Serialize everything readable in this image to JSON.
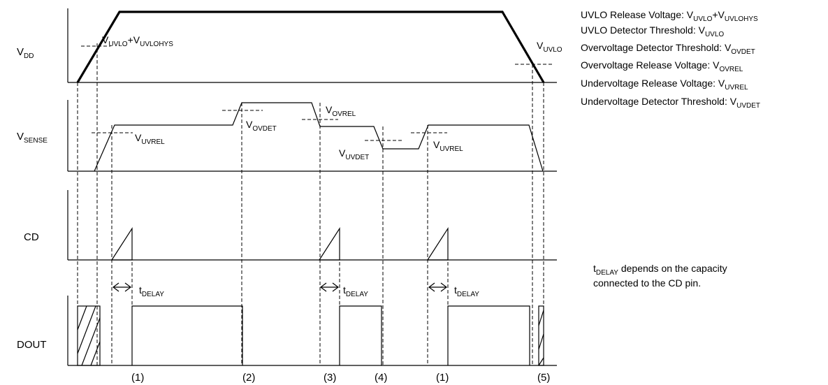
{
  "signals": {
    "vdd": {
      "main": "V",
      "sub": "DD"
    },
    "vsense": {
      "main": "V",
      "sub": "SENSE"
    },
    "cd": "CD",
    "dout": "DOUT"
  },
  "labels": {
    "uvlo_hys": {
      "main": "V",
      "sub1": "UVLO",
      "plus": "+V",
      "sub2": "UVLOHYS"
    },
    "uvlo": {
      "main": "V",
      "sub": "UVLO"
    },
    "uvrel": {
      "main": "V",
      "sub": "UVREL"
    },
    "ovdet": {
      "main": "V",
      "sub": "OVDET"
    },
    "ovrel": {
      "main": "V",
      "sub": "OVREL"
    },
    "uvdet": {
      "main": "V",
      "sub": "UVDET"
    },
    "tdelay": {
      "main": "t",
      "sub": "DELAY"
    }
  },
  "legend": [
    {
      "text": "UVLO Release Voltage: V",
      "sub": "UVLO",
      "extra": "+V",
      "sub2": "UVLOHYS"
    },
    {
      "text": "UVLO Detector Threshold: V",
      "sub": "UVLO"
    },
    {
      "text": "Overvoltage Detector Threshold: V",
      "sub": "OVDET"
    },
    {
      "text": "Overvoltage Release Voltage: V",
      "sub": "OVREL"
    },
    {
      "text": "Undervoltage Release Voltage: V",
      "sub": "UVREL"
    },
    {
      "text": "Undervoltage Detector Threshold: V",
      "sub": "UVDET"
    }
  ],
  "note": {
    "t": "t",
    "sub": "DELAY",
    "line1": " depends on the capacity",
    "line2": "connected to the CD pin."
  },
  "markers": [
    "(1)",
    "(2)",
    "(3)",
    "(4)",
    "(1)",
    "(5)"
  ]
}
